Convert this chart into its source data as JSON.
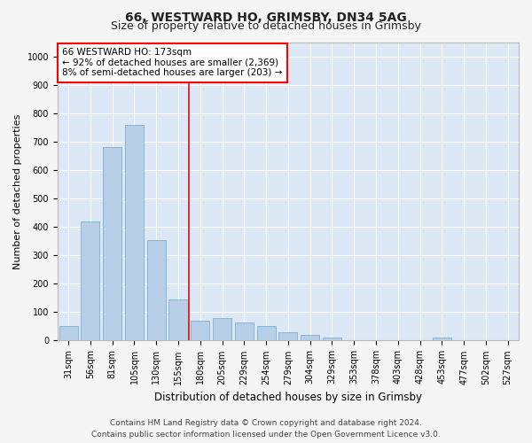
{
  "title": "66, WESTWARD HO, GRIMSBY, DN34 5AG",
  "subtitle": "Size of property relative to detached houses in Grimsby",
  "xlabel": "Distribution of detached houses by size in Grimsby",
  "ylabel": "Number of detached properties",
  "categories": [
    "31sqm",
    "56sqm",
    "81sqm",
    "105sqm",
    "130sqm",
    "155sqm",
    "180sqm",
    "205sqm",
    "229sqm",
    "254sqm",
    "279sqm",
    "304sqm",
    "329sqm",
    "353sqm",
    "378sqm",
    "403sqm",
    "428sqm",
    "453sqm",
    "477sqm",
    "502sqm",
    "527sqm"
  ],
  "values": [
    50,
    420,
    680,
    760,
    355,
    145,
    70,
    80,
    65,
    50,
    30,
    20,
    10,
    0,
    0,
    0,
    0,
    10,
    0,
    0,
    0
  ],
  "bar_color": "#b8cfe8",
  "bar_edge_color": "#7aaed4",
  "plot_bg_color": "#dce8f5",
  "fig_bg_color": "#f5f5f5",
  "grid_color": "#ffffff",
  "annotation_line1": "66 WESTWARD HO: 173sqm",
  "annotation_line2": "← 92% of detached houses are smaller (2,369)",
  "annotation_line3": "8% of semi-detached houses are larger (203) →",
  "redline_x": 5.5,
  "ylim": [
    0,
    1050
  ],
  "yticks": [
    0,
    100,
    200,
    300,
    400,
    500,
    600,
    700,
    800,
    900,
    1000
  ],
  "footer_line1": "Contains HM Land Registry data © Crown copyright and database right 2024.",
  "footer_line2": "Contains public sector information licensed under the Open Government Licence v3.0.",
  "title_fontsize": 10,
  "subtitle_fontsize": 9,
  "xlabel_fontsize": 8.5,
  "ylabel_fontsize": 8,
  "tick_fontsize": 7,
  "annotation_fontsize": 7.5,
  "footer_fontsize": 6.5
}
